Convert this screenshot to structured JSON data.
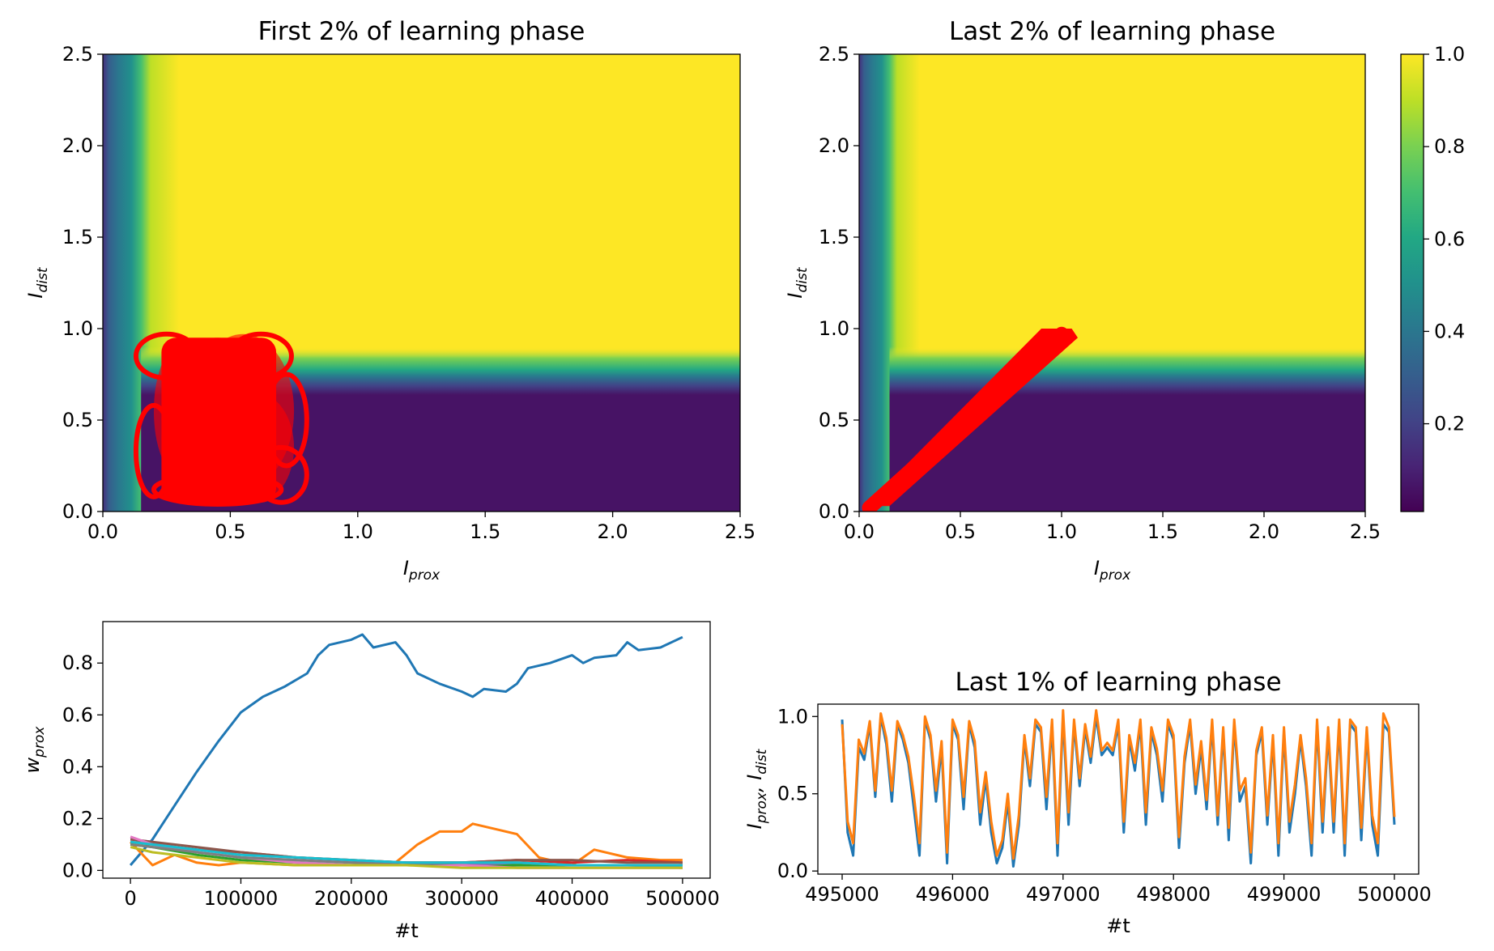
{
  "chart_data": [
    {
      "id": "heatmap_first",
      "type": "heatmap",
      "title": "First 2% of learning phase",
      "xlabel_main": "I",
      "xlabel_sub": "prox",
      "ylabel_main": "I",
      "ylabel_sub": "dist",
      "xlim": [
        0,
        2.5
      ],
      "ylim": [
        0,
        2.5
      ],
      "xticks": [
        "0.0",
        "0.5",
        "1.0",
        "1.5",
        "2.0",
        "2.5"
      ],
      "yticks": [
        "0.0",
        "0.5",
        "1.0",
        "1.5",
        "2.0",
        "2.5"
      ],
      "heatmap_description": "value ~0 where I_prox < 0.15 or I_dist < 0.75, ~1 elsewhere",
      "overlay": {
        "color": "#ff0000",
        "description": "red trajectory points clustered over I_prox 0.15–0.8, I_dist 0.03–0.97"
      }
    },
    {
      "id": "heatmap_last",
      "type": "heatmap",
      "title": "Last 2% of learning phase",
      "xlabel_main": "I",
      "xlabel_sub": "prox",
      "ylabel_main": "I",
      "ylabel_sub": "dist",
      "xlim": [
        0,
        2.5
      ],
      "ylim": [
        0,
        2.5
      ],
      "xticks": [
        "0.0",
        "0.5",
        "1.0",
        "1.5",
        "2.0",
        "2.5"
      ],
      "yticks": [
        "0.0",
        "0.5",
        "1.0",
        "1.5",
        "2.0",
        "2.5"
      ],
      "overlay": {
        "color": "#ff0000",
        "description": "red trajectory points along diagonal from (0.05,0.03) to (1.05,0.97)"
      },
      "colorbar": {
        "ticks": [
          "0.2",
          "0.4",
          "0.6",
          "0.8",
          "1.0"
        ],
        "tick_values": [
          0.2,
          0.4,
          0.6,
          0.8,
          1.0
        ],
        "range": [
          0.01,
          1.0
        ],
        "colormap": "viridis"
      }
    },
    {
      "id": "weights",
      "type": "line",
      "xlabel": "#t",
      "ylabel_main": "w",
      "ylabel_sub": "prox",
      "xlim": [
        -25000,
        525000
      ],
      "ylim": [
        -0.03,
        0.96
      ],
      "xticks": [
        "0",
        "100000",
        "200000",
        "300000",
        "400000",
        "500000"
      ],
      "xtick_values": [
        0,
        100000,
        200000,
        300000,
        400000,
        500000
      ],
      "yticks": [
        "0.0",
        "0.2",
        "0.4",
        "0.6",
        "0.8"
      ],
      "ytick_values": [
        0,
        0.2,
        0.4,
        0.6,
        0.8
      ],
      "series": [
        {
          "color": "#1f77b4",
          "x": [
            0,
            20000,
            40000,
            60000,
            80000,
            100000,
            120000,
            140000,
            160000,
            170000,
            180000,
            200000,
            210000,
            220000,
            240000,
            250000,
            260000,
            280000,
            300000,
            310000,
            320000,
            340000,
            350000,
            360000,
            380000,
            400000,
            410000,
            420000,
            440000,
            450000,
            460000,
            480000,
            500000
          ],
          "y": [
            0.02,
            0.12,
            0.25,
            0.38,
            0.5,
            0.61,
            0.67,
            0.71,
            0.76,
            0.83,
            0.87,
            0.89,
            0.91,
            0.86,
            0.88,
            0.83,
            0.76,
            0.72,
            0.69,
            0.67,
            0.7,
            0.69,
            0.72,
            0.78,
            0.8,
            0.83,
            0.8,
            0.82,
            0.83,
            0.88,
            0.85,
            0.86,
            0.9
          ]
        },
        {
          "color": "#ff7f0e",
          "x": [
            0,
            20000,
            40000,
            60000,
            80000,
            100000,
            150000,
            200000,
            240000,
            260000,
            280000,
            300000,
            310000,
            330000,
            350000,
            370000,
            400000,
            420000,
            450000,
            480000,
            500000
          ],
          "y": [
            0.11,
            0.02,
            0.06,
            0.03,
            0.02,
            0.03,
            0.02,
            0.02,
            0.03,
            0.1,
            0.15,
            0.15,
            0.18,
            0.16,
            0.14,
            0.05,
            0.02,
            0.08,
            0.05,
            0.04,
            0.04
          ]
        },
        {
          "color": "#2ca02c",
          "x": [
            0,
            20000,
            60000,
            100000,
            150000,
            200000,
            250000,
            300000,
            350000,
            400000,
            450000,
            500000
          ],
          "y": [
            0.1,
            0.09,
            0.06,
            0.04,
            0.03,
            0.02,
            0.02,
            0.02,
            0.02,
            0.02,
            0.02,
            0.01
          ]
        },
        {
          "color": "#d62728",
          "x": [
            0,
            20000,
            60000,
            100000,
            150000,
            200000,
            250000,
            300000,
            350000,
            400000,
            450000,
            500000
          ],
          "y": [
            0.11,
            0.1,
            0.08,
            0.07,
            0.05,
            0.04,
            0.03,
            0.03,
            0.04,
            0.03,
            0.04,
            0.03
          ]
        },
        {
          "color": "#9467bd",
          "x": [
            0,
            20000,
            60000,
            100000,
            150000,
            200000,
            250000,
            300000,
            350000,
            400000,
            450000,
            500000
          ],
          "y": [
            0.12,
            0.11,
            0.07,
            0.05,
            0.04,
            0.03,
            0.03,
            0.02,
            0.03,
            0.02,
            0.02,
            0.02
          ]
        },
        {
          "color": "#8c564b",
          "x": [
            0,
            20000,
            60000,
            100000,
            150000,
            200000,
            250000,
            300000,
            350000,
            400000,
            450000,
            500000
          ],
          "y": [
            0.12,
            0.11,
            0.09,
            0.07,
            0.05,
            0.04,
            0.03,
            0.03,
            0.04,
            0.04,
            0.03,
            0.03
          ]
        },
        {
          "color": "#e377c2",
          "x": [
            0,
            20000,
            60000,
            100000,
            150000,
            200000,
            250000,
            300000,
            350000,
            400000,
            450000,
            500000
          ],
          "y": [
            0.13,
            0.1,
            0.07,
            0.05,
            0.03,
            0.02,
            0.02,
            0.02,
            0.01,
            0.01,
            0.01,
            0.01
          ]
        },
        {
          "color": "#7f7f7f",
          "x": [
            0,
            20000,
            60000,
            100000,
            150000,
            200000,
            250000,
            300000,
            350000,
            400000,
            450000,
            500000
          ],
          "y": [
            0.1,
            0.09,
            0.07,
            0.05,
            0.04,
            0.03,
            0.02,
            0.03,
            0.03,
            0.02,
            0.02,
            0.02
          ]
        },
        {
          "color": "#bcbd22",
          "x": [
            0,
            20000,
            60000,
            100000,
            150000,
            200000,
            250000,
            300000,
            350000,
            400000,
            450000,
            500000
          ],
          "y": [
            0.09,
            0.07,
            0.05,
            0.03,
            0.02,
            0.02,
            0.02,
            0.01,
            0.01,
            0.01,
            0.01,
            0.01
          ]
        },
        {
          "color": "#17becf",
          "x": [
            0,
            20000,
            60000,
            100000,
            150000,
            200000,
            250000,
            300000,
            350000,
            400000,
            450000,
            500000
          ],
          "y": [
            0.11,
            0.1,
            0.08,
            0.06,
            0.05,
            0.04,
            0.03,
            0.03,
            0.03,
            0.02,
            0.02,
            0.02
          ]
        }
      ]
    },
    {
      "id": "inputs",
      "type": "line",
      "title": "Last 1% of learning phase",
      "xlabel": "#t",
      "ylabel_parts": [
        "I",
        "prox",
        ", I",
        "dist"
      ],
      "xlim": [
        494780,
        500220
      ],
      "ylim": [
        -0.02,
        1.08
      ],
      "xticks": [
        "495000",
        "496000",
        "497000",
        "498000",
        "499000",
        "500000"
      ],
      "xtick_values": [
        495000,
        496000,
        497000,
        498000,
        499000,
        500000
      ],
      "yticks": [
        "0.0",
        "0.5",
        "1.0"
      ],
      "ytick_values": [
        0,
        0.5,
        1.0
      ],
      "series": [
        {
          "color": "#1f77b4",
          "x": [
            495000,
            495050,
            495100,
            495150,
            495200,
            495250,
            495300,
            495350,
            495400,
            495450,
            495500,
            495550,
            495600,
            495650,
            495700,
            495750,
            495800,
            495850,
            495900,
            495950,
            496000,
            496050,
            496100,
            496150,
            496200,
            496250,
            496300,
            496350,
            496400,
            496450,
            496500,
            496550,
            496600,
            496650,
            496700,
            496750,
            496800,
            496850,
            496900,
            496950,
            497000,
            497050,
            497100,
            497150,
            497200,
            497250,
            497300,
            497350,
            497400,
            497450,
            497500,
            497550,
            497600,
            497650,
            497700,
            497750,
            497800,
            497850,
            497900,
            497950,
            498000,
            498050,
            498100,
            498150,
            498200,
            498250,
            498300,
            498350,
            498400,
            498450,
            498500,
            498550,
            498600,
            498650,
            498700,
            498750,
            498800,
            498850,
            498900,
            498950,
            499000,
            499050,
            499100,
            499150,
            499200,
            499250,
            499300,
            499350,
            499400,
            499450,
            499500,
            499550,
            499600,
            499650,
            499700,
            499750,
            499800,
            499850,
            499900,
            499950,
            500000
          ],
          "y": [
            0.98,
            0.25,
            0.1,
            0.8,
            0.72,
            0.95,
            0.48,
            1.0,
            0.82,
            0.45,
            0.95,
            0.85,
            0.7,
            0.4,
            0.1,
            0.98,
            0.85,
            0.45,
            0.8,
            0.05,
            0.95,
            0.85,
            0.4,
            0.95,
            0.8,
            0.3,
            0.6,
            0.25,
            0.05,
            0.15,
            0.45,
            0.03,
            0.3,
            0.85,
            0.55,
            0.95,
            0.9,
            0.4,
            0.95,
            0.1,
            1.0,
            0.3,
            0.95,
            0.55,
            0.92,
            0.7,
            1.0,
            0.75,
            0.8,
            0.75,
            0.95,
            0.25,
            0.85,
            0.65,
            0.95,
            0.3,
            0.9,
            0.75,
            0.45,
            0.95,
            0.85,
            0.15,
            0.7,
            0.95,
            0.5,
            0.8,
            0.4,
            0.95,
            0.3,
            0.9,
            0.2,
            0.95,
            0.45,
            0.55,
            0.05,
            0.75,
            0.9,
            0.3,
            0.85,
            0.1,
            0.9,
            0.25,
            0.5,
            0.85,
            0.55,
            0.1,
            0.95,
            0.25,
            0.9,
            0.25,
            0.95,
            0.1,
            0.95,
            0.9,
            0.2,
            0.9,
            0.3,
            0.1,
            0.95,
            0.9,
            0.3
          ]
        },
        {
          "color": "#ff7f0e",
          "x": [
            495000,
            495050,
            495100,
            495150,
            495200,
            495250,
            495300,
            495350,
            495400,
            495450,
            495500,
            495550,
            495600,
            495650,
            495700,
            495750,
            495800,
            495850,
            495900,
            495950,
            496000,
            496050,
            496100,
            496150,
            496200,
            496250,
            496300,
            496350,
            496400,
            496450,
            496500,
            496550,
            496600,
            496650,
            496700,
            496750,
            496800,
            496850,
            496900,
            496950,
            497000,
            497050,
            497100,
            497150,
            497200,
            497250,
            497300,
            497350,
            497400,
            497450,
            497500,
            497550,
            497600,
            497650,
            497700,
            497750,
            497800,
            497850,
            497900,
            497950,
            498000,
            498050,
            498100,
            498150,
            498200,
            498250,
            498300,
            498350,
            498400,
            498450,
            498500,
            498550,
            498600,
            498650,
            498700,
            498750,
            498800,
            498850,
            498900,
            498950,
            499000,
            499050,
            499100,
            499150,
            499200,
            499250,
            499300,
            499350,
            499400,
            499450,
            499500,
            499550,
            499600,
            499650,
            499700,
            499750,
            499800,
            499850,
            499900,
            499950,
            500000
          ],
          "y": [
            0.95,
            0.32,
            0.18,
            0.85,
            0.76,
            0.97,
            0.52,
            1.02,
            0.86,
            0.52,
            0.97,
            0.88,
            0.74,
            0.48,
            0.18,
            1.0,
            0.88,
            0.52,
            0.84,
            0.12,
            0.98,
            0.88,
            0.48,
            0.97,
            0.84,
            0.38,
            0.64,
            0.32,
            0.1,
            0.2,
            0.5,
            0.08,
            0.36,
            0.88,
            0.6,
            0.98,
            0.93,
            0.48,
            0.98,
            0.18,
            1.04,
            0.38,
            0.98,
            0.6,
            0.95,
            0.74,
            1.04,
            0.78,
            0.83,
            0.78,
            0.98,
            0.32,
            0.88,
            0.7,
            0.98,
            0.38,
            0.93,
            0.79,
            0.52,
            0.98,
            0.88,
            0.22,
            0.74,
            0.98,
            0.56,
            0.84,
            0.46,
            0.98,
            0.36,
            0.93,
            0.28,
            0.98,
            0.52,
            0.6,
            0.12,
            0.78,
            0.93,
            0.36,
            0.88,
            0.18,
            0.93,
            0.32,
            0.56,
            0.88,
            0.6,
            0.18,
            0.98,
            0.32,
            0.93,
            0.32,
            0.98,
            0.18,
            0.98,
            0.93,
            0.28,
            0.93,
            0.36,
            0.18,
            1.02,
            0.93,
            0.35
          ]
        }
      ]
    }
  ]
}
